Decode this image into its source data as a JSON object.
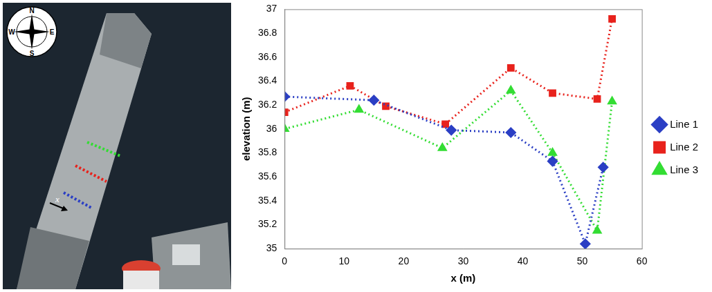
{
  "chart_data": {
    "type": "line",
    "x_label": "x (m)",
    "y_label": "elevation (m)",
    "xlim": [
      0,
      60
    ],
    "xticks": [
      0,
      10,
      20,
      30,
      40,
      50,
      60
    ],
    "ylim": [
      35,
      37
    ],
    "yticks": [
      35,
      35.2,
      35.4,
      35.6,
      35.8,
      36,
      36.2,
      36.4,
      36.6,
      36.8,
      37
    ],
    "grid": false,
    "legend": "right",
    "series": [
      {
        "name": "Line 1",
        "color": "#2b3fc4",
        "marker": "diamond",
        "line_style": "dotted",
        "x": [
          0,
          15,
          28,
          38,
          45,
          50.5,
          53.5
        ],
        "values": [
          36.27,
          36.24,
          35.99,
          35.97,
          35.73,
          35.04,
          35.68
        ]
      },
      {
        "name": "Line 2",
        "color": "#e8221c",
        "marker": "square",
        "line_style": "dotted",
        "x": [
          0,
          11,
          17,
          27,
          38,
          45,
          52.5,
          55
        ],
        "values": [
          36.14,
          36.36,
          36.19,
          36.04,
          36.51,
          36.3,
          36.25,
          36.92
        ]
      },
      {
        "name": "Line 3",
        "color": "#33dd33",
        "marker": "triangle",
        "line_style": "dotted",
        "x": [
          0,
          12.5,
          26.5,
          38,
          45,
          52.5,
          55
        ],
        "values": [
          36.0,
          36.16,
          35.84,
          36.32,
          35.8,
          35.15,
          36.23
        ]
      }
    ]
  },
  "map": {
    "compass": [
      "N",
      "E",
      "S",
      "W"
    ],
    "axis_label": "x"
  }
}
